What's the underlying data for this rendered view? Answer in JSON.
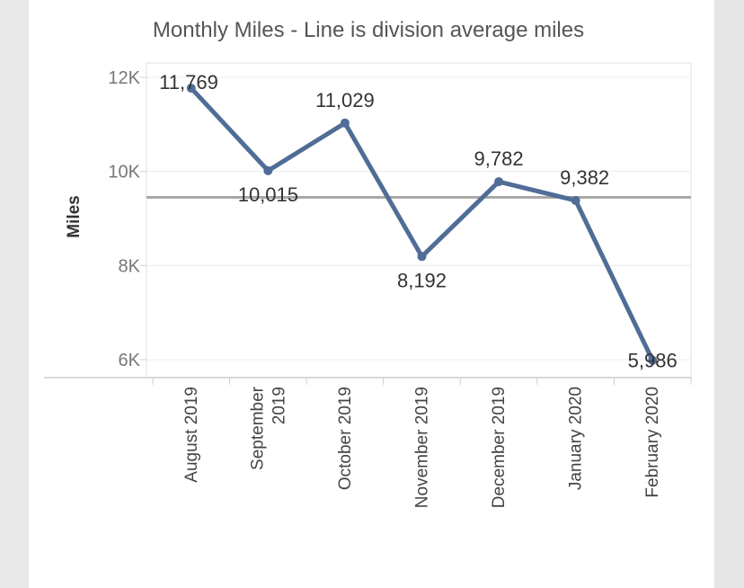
{
  "colors": {
    "line": "#4f6d96",
    "reference_line": "#a8a8a8",
    "grid": "#ececec",
    "axis": "#cfcfcf"
  },
  "chart_data": {
    "type": "line",
    "title": "Monthly Miles - Line is division average miles",
    "xlabel": "",
    "ylabel": "Miles",
    "categories": [
      [
        "August 2019"
      ],
      [
        "September",
        "2019"
      ],
      [
        "October 2019"
      ],
      [
        "November 2019"
      ],
      [
        "December 2019"
      ],
      [
        "January 2020"
      ],
      [
        "February 2020"
      ]
    ],
    "values": [
      11769,
      10015,
      11029,
      8192,
      9782,
      9382,
      5986
    ],
    "data_labels": [
      "11,769",
      "10,015",
      "11,029",
      "8,192",
      "9,782",
      "9,382",
      "5,986"
    ],
    "reference_line": {
      "value": 9450
    },
    "yticks": [
      6000,
      8000,
      10000,
      12000
    ],
    "ytick_labels": [
      "6K",
      "8K",
      "10K",
      "12K"
    ],
    "ylim": [
      6000,
      12300
    ],
    "grid": true,
    "legend": "none"
  }
}
